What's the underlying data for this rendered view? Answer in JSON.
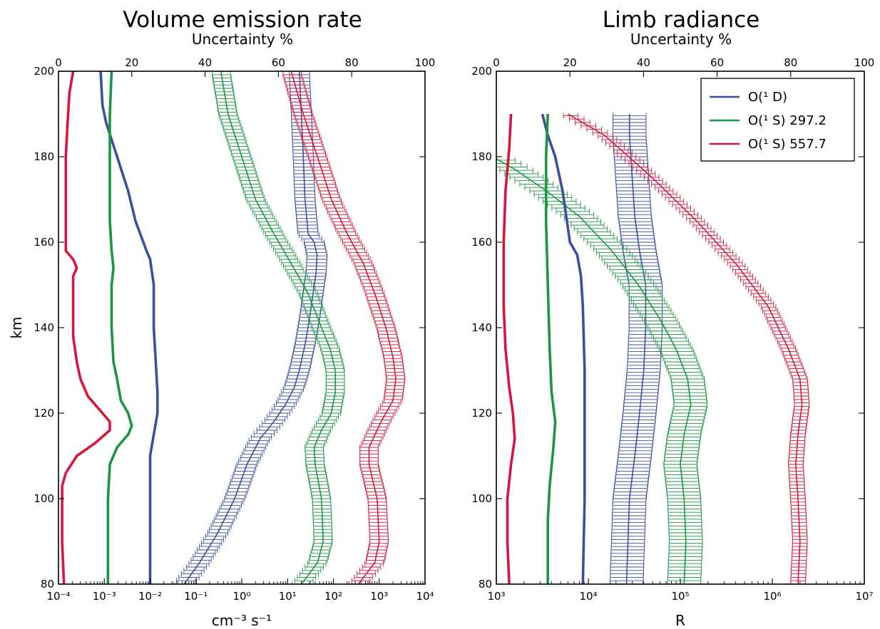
{
  "chart_data": [
    {
      "type": "line",
      "title": "Volume emission rate",
      "top_xlabel": "Uncertainty %",
      "xlabel": "cm⁻³ s⁻¹",
      "ylabel": "km",
      "xscale": "log",
      "xlim": [
        0.0001,
        10000
      ],
      "top_xlim": [
        0,
        100
      ],
      "ylim": [
        80,
        200
      ],
      "x_tick_labels": [
        "10⁻⁴",
        "10⁻³",
        "10⁻²",
        "10⁻¹",
        "10⁰",
        "10¹",
        "10²",
        "10³",
        "10⁴"
      ],
      "x_tick_values": [
        0.0001,
        0.001,
        0.01,
        0.1,
        1,
        10,
        100,
        1000,
        10000
      ],
      "top_tick_labels": [
        "0",
        "20",
        "40",
        "60",
        "80",
        "100"
      ],
      "top_tick_values": [
        0,
        20,
        40,
        60,
        80,
        100
      ],
      "y_tick_labels": [
        "80",
        "100",
        "120",
        "140",
        "160",
        "180",
        "200"
      ],
      "y_tick_values": [
        80,
        100,
        120,
        140,
        160,
        180,
        200
      ],
      "grid": false,
      "series": [
        {
          "name": "O(¹ D) profile",
          "axis": "bottom",
          "color": "#3a4fa0",
          "errorbar": true,
          "band": 0.22,
          "points": [
            [
              0.055,
              80
            ],
            [
              0.12,
              85
            ],
            [
              0.3,
              92
            ],
            [
              0.7,
              100
            ],
            [
              1.3,
              108
            ],
            [
              2.5,
              114
            ],
            [
              5,
              118
            ],
            [
              9,
              122
            ],
            [
              14,
              126
            ],
            [
              18,
              130
            ],
            [
              24,
              136
            ],
            [
              30,
              142
            ],
            [
              36,
              148
            ],
            [
              42,
              153
            ],
            [
              44,
              157
            ],
            [
              38,
              160
            ],
            [
              28,
              162
            ],
            [
              24,
              170
            ],
            [
              22,
              180
            ],
            [
              20,
              190
            ],
            [
              18,
              200
            ]
          ]
        },
        {
          "name": "O(¹ S) 297.2 profile",
          "axis": "bottom",
          "color": "#1a9640",
          "errorbar": true,
          "band": 0.2,
          "points": [
            [
              20,
              80
            ],
            [
              45,
              85
            ],
            [
              60,
              90
            ],
            [
              55,
              100
            ],
            [
              40,
              108
            ],
            [
              38,
              112
            ],
            [
              55,
              116
            ],
            [
              90,
              120
            ],
            [
              110,
              125
            ],
            [
              110,
              130
            ],
            [
              85,
              135
            ],
            [
              55,
              140
            ],
            [
              28,
              148
            ],
            [
              12,
              155
            ],
            [
              5,
              162
            ],
            [
              2,
              170
            ],
            [
              1,
              180
            ],
            [
              0.5,
              190
            ],
            [
              0.35,
              200
            ]
          ]
        },
        {
          "name": "O(¹ S) 557.7 profile",
          "axis": "bottom",
          "color": "#d6163b",
          "errorbar": true,
          "band": 0.2,
          "points": [
            [
              350,
              80
            ],
            [
              800,
              85
            ],
            [
              1000,
              90
            ],
            [
              900,
              100
            ],
            [
              600,
              108
            ],
            [
              600,
              112
            ],
            [
              1100,
              118
            ],
            [
              2000,
              123
            ],
            [
              2300,
              128
            ],
            [
              2000,
              133
            ],
            [
              1400,
              140
            ],
            [
              800,
              148
            ],
            [
              450,
              155
            ],
            [
              200,
              162
            ],
            [
              90,
              170
            ],
            [
              45,
              180
            ],
            [
              22,
              190
            ],
            [
              12,
              200
            ]
          ]
        },
        {
          "name": "O(¹ D) uncertainty",
          "axis": "top",
          "color": "#3a4fa0",
          "errorbar": false,
          "points": [
            [
              25,
              80
            ],
            [
              25,
              100
            ],
            [
              25,
              110
            ],
            [
              27,
              120
            ],
            [
              27,
              125
            ],
            [
              26,
              140
            ],
            [
              26,
              150
            ],
            [
              25,
              156
            ],
            [
              24,
              158
            ],
            [
              21,
              165
            ],
            [
              19,
              172
            ],
            [
              16,
              180
            ],
            [
              13,
              188
            ],
            [
              12,
              192
            ],
            [
              11.5,
              200
            ]
          ]
        },
        {
          "name": "O(¹ S) 297.2 uncertainty",
          "axis": "top",
          "color": "#1a9640",
          "errorbar": false,
          "points": [
            [
              13.5,
              80
            ],
            [
              13.5,
              100
            ],
            [
              14,
              108
            ],
            [
              16,
              112
            ],
            [
              19,
              115
            ],
            [
              20,
              117
            ],
            [
              19,
              120
            ],
            [
              17,
              123
            ],
            [
              16,
              128
            ],
            [
              15,
              132
            ],
            [
              14.5,
              140
            ],
            [
              14.5,
              146
            ],
            [
              14.5,
              150
            ],
            [
              15,
              154
            ],
            [
              14.5,
              158
            ],
            [
              14,
              165
            ],
            [
              14,
              180
            ],
            [
              14,
              190
            ],
            [
              14.5,
              200
            ]
          ]
        },
        {
          "name": "O(¹ S) 557.7 uncertainty",
          "axis": "top",
          "color": "#d6163b",
          "errorbar": false,
          "points": [
            [
              1.5,
              80
            ],
            [
              1,
              90
            ],
            [
              1,
              103
            ],
            [
              2,
              106
            ],
            [
              5,
              110
            ],
            [
              10,
              113
            ],
            [
              14,
              116
            ],
            [
              14,
              118
            ],
            [
              12,
              120
            ],
            [
              10,
              122
            ],
            [
              8,
              124
            ],
            [
              6,
              128
            ],
            [
              5,
              132
            ],
            [
              4,
              138
            ],
            [
              4,
              146
            ],
            [
              4,
              152
            ],
            [
              5,
              154
            ],
            [
              4,
              156
            ],
            [
              2,
              158
            ],
            [
              2,
              163
            ],
            [
              2,
              170
            ],
            [
              2,
              180
            ],
            [
              2.5,
              188
            ],
            [
              3,
              195
            ],
            [
              4,
              200
            ]
          ]
        }
      ]
    },
    {
      "type": "line",
      "title": "Limb radiance",
      "top_xlabel": "Uncertainty %",
      "xlabel": "R",
      "ylabel": "",
      "xscale": "log",
      "xlim": [
        1000,
        10000000
      ],
      "top_xlim": [
        0,
        100
      ],
      "ylim": [
        80,
        200
      ],
      "x_tick_labels": [
        "10³",
        "10⁴",
        "10⁵",
        "10⁶",
        "10⁷"
      ],
      "x_tick_values": [
        1000,
        10000,
        100000,
        1000000,
        10000000
      ],
      "top_tick_labels": [
        "0",
        "20",
        "40",
        "60",
        "80",
        "100"
      ],
      "top_tick_values": [
        0,
        20,
        40,
        60,
        80,
        100
      ],
      "y_tick_labels": [
        "80",
        "100",
        "120",
        "140",
        "160",
        "180",
        "200"
      ],
      "y_tick_values": [
        80,
        100,
        120,
        140,
        160,
        180,
        200
      ],
      "grid": false,
      "legend_position": "top-right",
      "legend": [
        {
          "label": "O(¹ D)",
          "color": "#3a4fa0"
        },
        {
          "label": "O(¹ S) 297.2",
          "color": "#1a9640"
        },
        {
          "label": "O(¹ S) 557.7",
          "color": "#d6163b"
        }
      ],
      "series": [
        {
          "name": "O(¹ D) profile",
          "axis": "bottom",
          "color": "#3a4fa0",
          "errorbar": true,
          "band": 0.18,
          "points": [
            [
              26000,
              80
            ],
            [
              27000,
              90
            ],
            [
              28000,
              100
            ],
            [
              32000,
              110
            ],
            [
              36000,
              120
            ],
            [
              40000,
              130
            ],
            [
              42000,
              140
            ],
            [
              42000,
              150
            ],
            [
              36000,
              158
            ],
            [
              32000,
              166
            ],
            [
              30000,
              175
            ],
            [
              28000,
              185
            ],
            [
              28000,
              190
            ]
          ]
        },
        {
          "name": "O(¹ S) 297.2 profile",
          "axis": "bottom",
          "color": "#1a9640",
          "errorbar": true,
          "band": 0.18,
          "points": [
            [
              110000,
              80
            ],
            [
              115000,
              90
            ],
            [
              110000,
              100
            ],
            [
              100000,
              108
            ],
            [
              110000,
              115
            ],
            [
              130000,
              122
            ],
            [
              120000,
              128
            ],
            [
              90000,
              135
            ],
            [
              60000,
              142
            ],
            [
              35000,
              150
            ],
            [
              18000,
              158
            ],
            [
              8000,
              166
            ],
            [
              3500,
              172
            ],
            [
              1600,
              177
            ],
            [
              1000,
              179.5
            ]
          ]
        },
        {
          "name": "O(¹ S) 557.7 profile",
          "axis": "bottom",
          "color": "#d6163b",
          "errorbar": true,
          "band": 0.08,
          "points": [
            [
              1900000,
              80
            ],
            [
              2000000,
              90
            ],
            [
              1900000,
              100
            ],
            [
              1800000,
              108
            ],
            [
              1900000,
              115
            ],
            [
              2100000,
              122
            ],
            [
              2000000,
              128
            ],
            [
              1500000,
              135
            ],
            [
              900000,
              145
            ],
            [
              400000,
              155
            ],
            [
              150000,
              165
            ],
            [
              50000,
              175
            ],
            [
              15000,
              185
            ],
            [
              6000,
              190
            ]
          ]
        },
        {
          "name": "O(¹ D) uncertainty",
          "axis": "top",
          "color": "#3a4fa0",
          "errorbar": false,
          "points": [
            [
              23.5,
              80
            ],
            [
              24,
              100
            ],
            [
              24,
              130
            ],
            [
              23.5,
              145
            ],
            [
              23,
              152
            ],
            [
              22,
              157
            ],
            [
              20,
              160
            ],
            [
              18,
              172
            ],
            [
              16,
              180
            ],
            [
              14,
              185
            ],
            [
              12.5,
              190
            ]
          ]
        },
        {
          "name": "O(¹ S) 297.2 uncertainty",
          "axis": "top",
          "color": "#1a9640",
          "errorbar": false,
          "points": [
            [
              14,
              80
            ],
            [
              14,
              95
            ],
            [
              14.5,
              103
            ],
            [
              15.5,
              112
            ],
            [
              16,
              118
            ],
            [
              15,
              125
            ],
            [
              14.5,
              135
            ],
            [
              14,
              150
            ],
            [
              13.5,
              165
            ],
            [
              13.5,
              180
            ],
            [
              14,
              190
            ]
          ]
        },
        {
          "name": "O(¹ S) 557.7 uncertainty",
          "axis": "top",
          "color": "#d6163b",
          "errorbar": false,
          "points": [
            [
              3.5,
              80
            ],
            [
              3,
              90
            ],
            [
              3,
              100
            ],
            [
              4,
              108
            ],
            [
              5,
              114
            ],
            [
              4.5,
              120
            ],
            [
              3.5,
              126
            ],
            [
              2.5,
              135
            ],
            [
              2,
              145
            ],
            [
              2,
              160
            ],
            [
              2.5,
              172
            ],
            [
              3.5,
              182
            ],
            [
              4,
              190
            ]
          ]
        }
      ]
    }
  ]
}
